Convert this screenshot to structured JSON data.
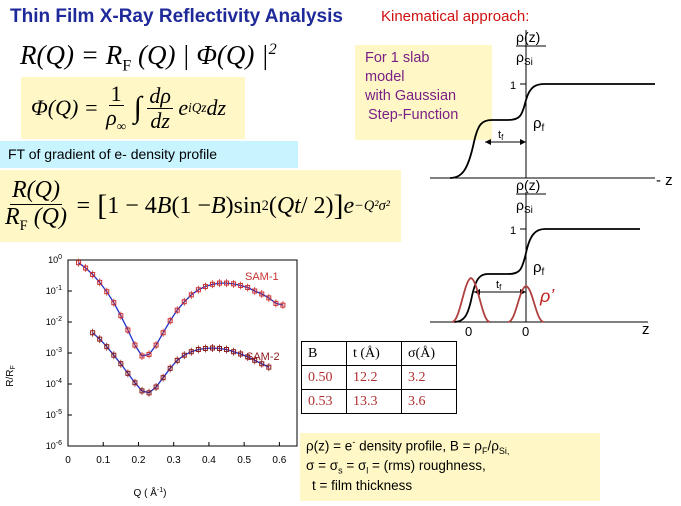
{
  "title": "Thin Film X-Ray Reflectivity Analysis",
  "kinematical": "Kinematical approach:",
  "model_note": [
    "For 1 slab",
    "model",
    "with Gaussian",
    "Step-Function"
  ],
  "ft_caption": "FT of gradient of e- density profile",
  "profile_labels": {
    "rho_num": "ρ(z)",
    "rho_den": "ρ",
    "rho_den_sub": "Si",
    "one": "1",
    "rho_f": "ρ",
    "rho_f_sub": "f",
    "t_f": "t",
    "t_f_sub": "f",
    "z": "z",
    "zero": "0",
    "rho_prime": "ρ’"
  },
  "plot_labels": {
    "ylabel": "R/R",
    "ylabel_sub": "F",
    "xlabel": "Q ( Å",
    "xlabel_sup": "-1",
    "xlabel_end": ")",
    "sam1": "SAM-1",
    "sam2": "SAM-2"
  },
  "chart_data": {
    "type": "scatter",
    "title": "",
    "xlabel": "Q ( Å-1)",
    "ylabel": "R/RF",
    "xlim": [
      0,
      0.65
    ],
    "ylim_log10": [
      -6,
      0
    ],
    "y_scale": "log",
    "x_ticks": [
      "0",
      "0.1",
      "0.2",
      "0.3",
      "0.4",
      "0.5",
      "0.6"
    ],
    "y_ticks": [
      "10^0",
      "10^-1",
      "10^-2",
      "10^-3",
      "10^-4",
      "10^-5",
      "10^-6"
    ],
    "series": [
      {
        "name": "SAM-1",
        "color": "#c83030",
        "fit_color": "#2030c8",
        "points": [
          [
            0.03,
            0.82
          ],
          [
            0.05,
            0.55
          ],
          [
            0.07,
            0.34
          ],
          [
            0.09,
            0.19
          ],
          [
            0.11,
            0.095
          ],
          [
            0.13,
            0.042
          ],
          [
            0.15,
            0.016
          ],
          [
            0.17,
            0.0055
          ],
          [
            0.19,
            0.0018
          ],
          [
            0.21,
            0.0008
          ],
          [
            0.23,
            0.0009
          ],
          [
            0.25,
            0.0018
          ],
          [
            0.27,
            0.0045
          ],
          [
            0.29,
            0.011
          ],
          [
            0.31,
            0.024
          ],
          [
            0.33,
            0.045
          ],
          [
            0.35,
            0.075
          ],
          [
            0.37,
            0.11
          ],
          [
            0.39,
            0.14
          ],
          [
            0.41,
            0.165
          ],
          [
            0.43,
            0.18
          ],
          [
            0.45,
            0.18
          ],
          [
            0.47,
            0.17
          ],
          [
            0.49,
            0.15
          ],
          [
            0.51,
            0.13
          ],
          [
            0.53,
            0.1
          ],
          [
            0.55,
            0.08
          ],
          [
            0.57,
            0.06
          ],
          [
            0.59,
            0.04
          ],
          [
            0.61,
            0.035
          ]
        ]
      },
      {
        "name": "SAM-2",
        "color": "#8b1a1a",
        "fit_color": "#2030c8",
        "points": [
          [
            0.07,
            0.0045
          ],
          [
            0.09,
            0.0028
          ],
          [
            0.11,
            0.0016
          ],
          [
            0.13,
            0.00085
          ],
          [
            0.15,
            0.00045
          ],
          [
            0.17,
            0.00022
          ],
          [
            0.19,
            0.00011
          ],
          [
            0.21,
            6e-05
          ],
          [
            0.23,
            5.2e-05
          ],
          [
            0.25,
            8e-05
          ],
          [
            0.27,
            0.00016
          ],
          [
            0.29,
            0.00032
          ],
          [
            0.31,
            0.00058
          ],
          [
            0.33,
            0.00085
          ],
          [
            0.35,
            0.0011
          ],
          [
            0.37,
            0.0013
          ],
          [
            0.39,
            0.0014
          ],
          [
            0.41,
            0.00145
          ],
          [
            0.43,
            0.0014
          ],
          [
            0.45,
            0.0013
          ],
          [
            0.47,
            0.0011
          ],
          [
            0.49,
            0.00093
          ],
          [
            0.51,
            0.00075
          ],
          [
            0.53,
            0.00058
          ],
          [
            0.55,
            0.00045
          ],
          [
            0.57,
            0.00035
          ]
        ]
      }
    ]
  },
  "table": {
    "headers": [
      "B",
      "t (Å)",
      "σ(Å)"
    ],
    "rows": [
      [
        "0.50",
        "12.2",
        "3.2"
      ],
      [
        "0.53",
        "13.3",
        "3.6"
      ]
    ]
  },
  "notes": {
    "line1a": "ρ(z) = e",
    "line1b": " density profile,  B = ρ",
    "line1c": "/ρ",
    "line2": "σ = σ",
    "line2b": " = σ",
    "line2c": " = (rms) roughness,",
    "line3": "t = film thickness",
    "sub_F": "F",
    "sub_Si": "Si,",
    "sub_s": "s",
    "sub_l": "l",
    "sup_minus": "-"
  },
  "colors": {
    "title": "#1f2a9a",
    "accent_red": "#d01010",
    "note_purple": "#7a1f86",
    "yellow_box": "#fff8c6",
    "cyan_box": "#c8f4ff"
  }
}
